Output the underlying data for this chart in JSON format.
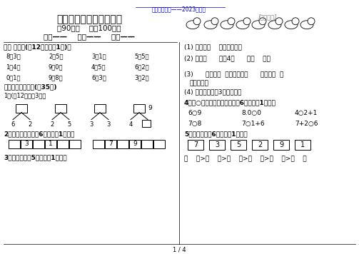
{
  "bg_color": "#ffffff",
  "top_link_text": "精品教育资料——2023年整理",
  "top_link_color": "#0000cc",
  "title": "一年级数学上册期中试卷",
  "subtitle": "（90分钟    满分100分）",
  "info_line": "姓名——    班级——    分数——",
  "section1_header": "一、 口算。(共12分，每题1分)。",
  "math_row1": [
    "8－3＝",
    "2＋5＝",
    "3－1＝",
    "5－5＝"
  ],
  "math_row2": [
    "1＋4＝",
    "9－0＝",
    "4＋5＝",
    "6＋2＝"
  ],
  "math_row3": [
    "0＋1＝",
    "9－8＝",
    "6－3＝",
    "3－2＝"
  ],
  "section2_header": "二、按要求填空。(共35分)",
  "sub1_header": "1．(共12分每空3分）",
  "sub2_header": "2．按顺序填数（共6分，每空1分）。",
  "sub3_header": "3．数一数（共5分，每空1分）。",
  "right_q1": "(1) 一共有（    ）只小动物。",
  "right_q2": "(2) 从左数      排第4，      第（    ）。",
  "right_q3": "(3)      前面有（  ）只小动物，      后面有（  ）",
  "right_q3b": "只小动物。",
  "right_q4": "(4) 从右边起圈出3只小动物。",
  "right_q5_header": "4、在○里填上＜、＞或＝（共6分，每空1分）。",
  "right_q5_row1": [
    "6○9",
    "8.0○0",
    "4○2+1"
  ],
  "right_q5_row2": [
    "7○8",
    "7○1+6",
    "7+2○6"
  ],
  "right_q6_header": "5、排一排（共6分，每空1分）。",
  "sort_numbers": [
    "7",
    "3",
    "5",
    "2",
    "9",
    "1"
  ],
  "right_bottom": "（    ）>（    ）>（    ）>（    ）>（    ）>（    ）",
  "page_footer": "1 / 4",
  "number9_pos": "9",
  "tree_numbers": [
    [
      "6",
      "2"
    ],
    [
      "2",
      "5"
    ],
    [
      "3",
      "3"
    ],
    [
      "4",
      "□"
    ]
  ],
  "seq_row1": [
    "",
    "3",
    "",
    "1",
    "",
    ""
  ],
  "seq_row2": [
    "",
    "7",
    "",
    "9",
    "",
    ""
  ]
}
